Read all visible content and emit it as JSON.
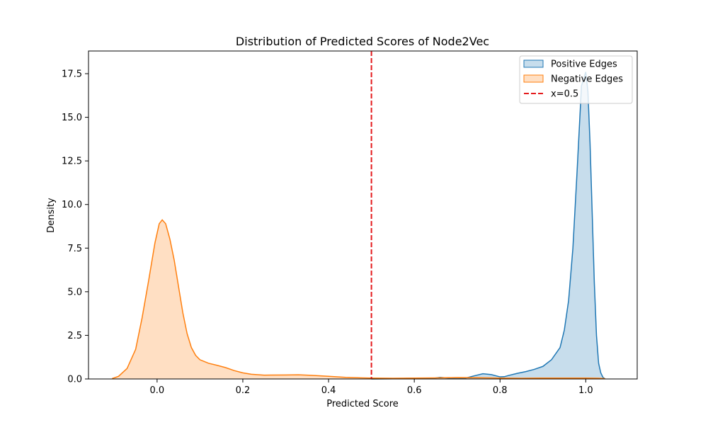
{
  "chart_data": {
    "type": "area",
    "title": "Distribution of Predicted Scores of Node2Vec",
    "xlabel": "Predicted Score",
    "ylabel": "Density",
    "xlim": [
      -0.16,
      1.12
    ],
    "ylim": [
      0,
      18.8
    ],
    "xticks": [
      0.0,
      0.2,
      0.4,
      0.6,
      0.8,
      1.0
    ],
    "xtick_labels": [
      "0.0",
      "0.2",
      "0.4",
      "0.6",
      "0.8",
      "1.0"
    ],
    "yticks": [
      0,
      2.5,
      5,
      7.5,
      10,
      12.5,
      15,
      17.5
    ],
    "ytick_labels": [
      "0.0",
      "2.5",
      "5.0",
      "7.5",
      "10.0",
      "12.5",
      "15.0",
      "17.5"
    ],
    "grid": false,
    "legend_position": "top-right",
    "series": [
      {
        "name": "Positive Edges",
        "line_color": "#1f77b4",
        "fill_color": "#1f77b4",
        "points": [
          [
            0.5,
            0
          ],
          [
            0.55,
            0.01
          ],
          [
            0.6,
            0.05
          ],
          [
            0.62,
            0.04
          ],
          [
            0.64,
            0.02
          ],
          [
            0.66,
            0.09
          ],
          [
            0.68,
            0.05
          ],
          [
            0.7,
            0.02
          ],
          [
            0.72,
            0.05
          ],
          [
            0.74,
            0.18
          ],
          [
            0.76,
            0.3
          ],
          [
            0.78,
            0.25
          ],
          [
            0.8,
            0.12
          ],
          [
            0.81,
            0.13
          ],
          [
            0.82,
            0.2
          ],
          [
            0.84,
            0.32
          ],
          [
            0.86,
            0.42
          ],
          [
            0.88,
            0.55
          ],
          [
            0.9,
            0.72
          ],
          [
            0.92,
            1.1
          ],
          [
            0.94,
            1.8
          ],
          [
            0.95,
            2.8
          ],
          [
            0.96,
            4.5
          ],
          [
            0.97,
            7.5
          ],
          [
            0.98,
            12.0
          ],
          [
            0.99,
            16.8
          ],
          [
            1.0,
            17.6
          ],
          [
            1.005,
            16.5
          ],
          [
            1.01,
            13.5
          ],
          [
            1.015,
            9.5
          ],
          [
            1.02,
            5.5
          ],
          [
            1.025,
            2.5
          ],
          [
            1.03,
            0.9
          ],
          [
            1.035,
            0.35
          ],
          [
            1.04,
            0.1
          ],
          [
            1.045,
            0.0
          ]
        ]
      },
      {
        "name": "Negative Edges",
        "line_color": "#ff7f0e",
        "fill_color": "#ff7f0e",
        "points": [
          [
            -0.105,
            0.02
          ],
          [
            -0.09,
            0.15
          ],
          [
            -0.07,
            0.6
          ],
          [
            -0.05,
            1.7
          ],
          [
            -0.035,
            3.5
          ],
          [
            -0.02,
            5.6
          ],
          [
            -0.005,
            7.8
          ],
          [
            0.005,
            8.9
          ],
          [
            0.012,
            9.12
          ],
          [
            0.02,
            8.9
          ],
          [
            0.03,
            8.0
          ],
          [
            0.04,
            6.8
          ],
          [
            0.05,
            5.3
          ],
          [
            0.06,
            3.8
          ],
          [
            0.07,
            2.6
          ],
          [
            0.08,
            1.8
          ],
          [
            0.09,
            1.35
          ],
          [
            0.1,
            1.1
          ],
          [
            0.12,
            0.9
          ],
          [
            0.14,
            0.78
          ],
          [
            0.16,
            0.65
          ],
          [
            0.18,
            0.48
          ],
          [
            0.2,
            0.35
          ],
          [
            0.22,
            0.27
          ],
          [
            0.25,
            0.22
          ],
          [
            0.3,
            0.23
          ],
          [
            0.33,
            0.24
          ],
          [
            0.36,
            0.21
          ],
          [
            0.4,
            0.15
          ],
          [
            0.44,
            0.09
          ],
          [
            0.5,
            0.05
          ],
          [
            0.55,
            0.04
          ],
          [
            0.6,
            0.05
          ],
          [
            0.65,
            0.06
          ],
          [
            0.7,
            0.08
          ],
          [
            0.75,
            0.07
          ],
          [
            0.8,
            0.05
          ],
          [
            0.85,
            0.04
          ],
          [
            0.9,
            0.05
          ],
          [
            0.95,
            0.05
          ],
          [
            1.0,
            0.05
          ],
          [
            1.03,
            0.04
          ],
          [
            1.045,
            0.02
          ]
        ]
      }
    ],
    "vline": {
      "x": 0.5,
      "label": "x=0.5",
      "color": "#e41a1c"
    }
  }
}
